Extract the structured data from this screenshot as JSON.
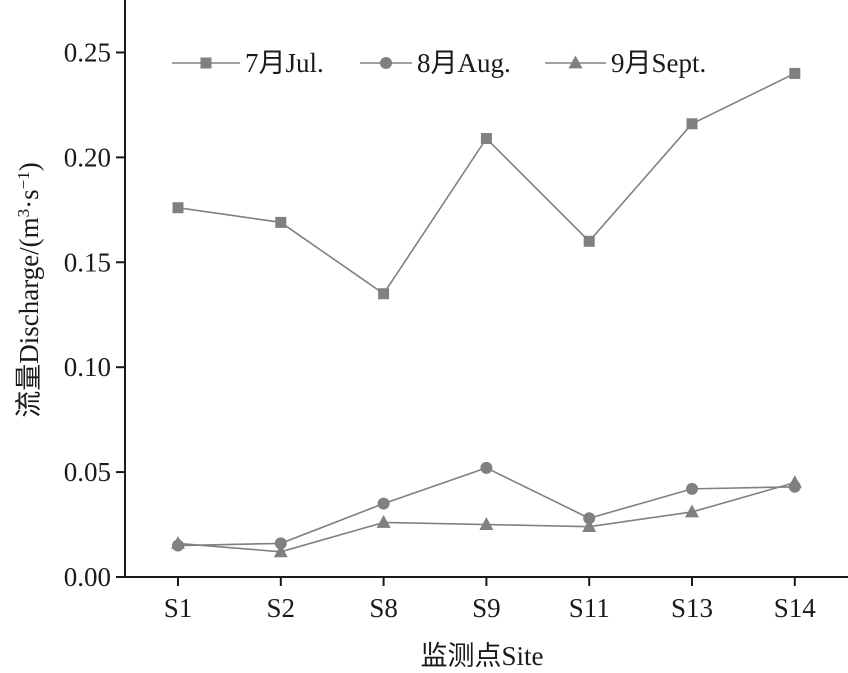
{
  "chart_data": {
    "type": "line",
    "categories": [
      "S1",
      "S2",
      "S8",
      "S9",
      "S11",
      "S13",
      "S14"
    ],
    "xlabel": "监测点Site",
    "ylabel": {
      "main": "流量Discharge/(m",
      "sup1": "3",
      "mid": "·s",
      "sup2": "−1",
      "end": ")"
    },
    "ylim": [
      0,
      0.275
    ],
    "yticks": [
      "0.00",
      "0.05",
      "0.10",
      "0.15",
      "0.20",
      "0.25"
    ],
    "grid": false,
    "legend_position": "top",
    "series": [
      {
        "name": "7月Jul.",
        "marker": "square",
        "color": "#808080",
        "values": [
          0.176,
          0.169,
          0.135,
          0.209,
          0.16,
          0.216,
          0.24
        ]
      },
      {
        "name": "8月Aug.",
        "marker": "circle",
        "color": "#808080",
        "values": [
          0.015,
          0.016,
          0.035,
          0.052,
          0.028,
          0.042,
          0.043
        ]
      },
      {
        "name": "9月Sept.",
        "marker": "triangle",
        "color": "#808080",
        "values": [
          0.016,
          0.012,
          0.026,
          0.025,
          0.024,
          0.031,
          0.045
        ]
      }
    ]
  }
}
